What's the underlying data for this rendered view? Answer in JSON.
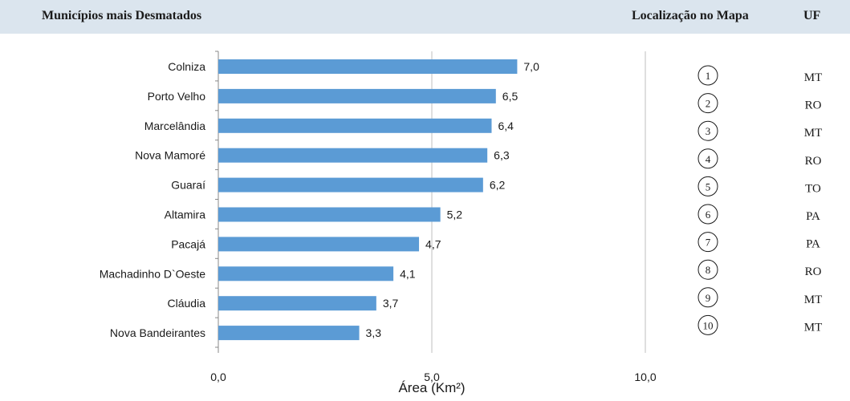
{
  "header": {
    "title": "Municípios mais Desmatados",
    "location_header": "Localização no Mapa",
    "uf_header": "UF"
  },
  "chart_data": {
    "type": "bar",
    "orientation": "horizontal",
    "categories": [
      "Colniza",
      "Porto Velho",
      "Marcelândia",
      "Nova Mamoré",
      "Guaraí",
      "Altamira",
      "Pacajá",
      "Machadinho D`Oeste",
      "Cláudia",
      "Nova Bandeirantes"
    ],
    "values": [
      7.0,
      6.5,
      6.4,
      6.3,
      6.2,
      5.2,
      4.7,
      4.1,
      3.7,
      3.3
    ],
    "value_labels": [
      "7,0",
      "6,5",
      "6,4",
      "6,3",
      "6,2",
      "5,2",
      "4,7",
      "4,1",
      "3,7",
      "3,3"
    ],
    "xlabel": "Área (Km²)",
    "xlim": [
      0,
      10
    ],
    "xticks": [
      0,
      5,
      10
    ],
    "xtick_labels": [
      "0,0",
      "5,0",
      "10,0"
    ],
    "grid": true,
    "bar_color": "#5b9bd5"
  },
  "table": {
    "rows": [
      {
        "number": "1",
        "uf": "MT"
      },
      {
        "number": "2",
        "uf": "RO"
      },
      {
        "number": "3",
        "uf": "MT"
      },
      {
        "number": "4",
        "uf": "RO"
      },
      {
        "number": "5",
        "uf": "TO"
      },
      {
        "number": "6",
        "uf": "PA"
      },
      {
        "number": "7",
        "uf": "PA"
      },
      {
        "number": "8",
        "uf": "RO"
      },
      {
        "number": "9",
        "uf": "MT"
      },
      {
        "number": "10",
        "uf": "MT"
      }
    ]
  }
}
